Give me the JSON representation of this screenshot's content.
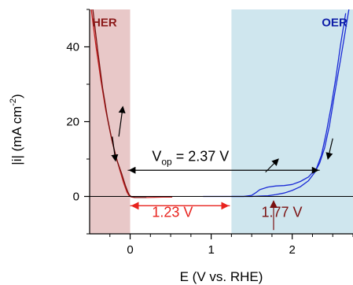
{
  "chart_data": {
    "type": "line",
    "xlabel": "E (V vs. RHE)",
    "ylabel": "|i| (mA cm-2)",
    "xlim": [
      -0.5,
      2.75
    ],
    "ylim": [
      -10,
      50
    ],
    "x_ticks": [
      {
        "value": 0,
        "label": "0"
      },
      {
        "value": 1,
        "label": "1"
      },
      {
        "value": 2,
        "label": "2"
      }
    ],
    "y_ticks": [
      {
        "value": 0,
        "label": "0"
      },
      {
        "value": 20,
        "label": "20"
      },
      {
        "value": 40,
        "label": "40"
      }
    ],
    "regions": [
      {
        "label": "HER",
        "x": [
          -0.5,
          0.0
        ],
        "color": "#e8c8c8",
        "label_color": "#8b1a1a"
      },
      {
        "label": "OER",
        "x": [
          1.25,
          2.75
        ],
        "color": "#cfe6ee",
        "label_color": "#0f1fa8"
      }
    ],
    "series": [
      {
        "color": "#c41e1e",
        "x": [
          -0.48,
          -0.42,
          -0.36,
          -0.3,
          -0.24,
          -0.18,
          -0.12,
          -0.08,
          -0.04,
          -0.02,
          0.0,
          0.02,
          0.06,
          0.2,
          0.4,
          0.52
        ],
        "y": [
          50,
          40,
          31,
          23,
          16.5,
          11,
          6.5,
          3.6,
          1.2,
          0.4,
          0.0,
          -0.2,
          -0.3,
          -0.3,
          -0.2,
          -0.2
        ]
      },
      {
        "color": "#7a1010",
        "x": [
          -0.46,
          -0.4,
          -0.34,
          -0.28,
          -0.22,
          -0.16,
          -0.1,
          -0.06,
          -0.03,
          -0.01,
          0.01,
          0.06,
          0.2
        ],
        "y": [
          50,
          39,
          29,
          21,
          14.5,
          9.5,
          5.8,
          3.0,
          1.3,
          0.4,
          0.0,
          -0.3,
          -0.3
        ]
      },
      {
        "color": "#1a2ad6",
        "x": [
          0.9,
          1.2,
          1.4,
          1.5,
          1.55,
          1.6,
          1.7,
          1.8,
          1.9,
          2.0,
          2.1,
          2.2,
          2.3,
          2.36,
          2.42,
          2.48,
          2.54,
          2.6,
          2.66
        ],
        "y": [
          0.0,
          0.0,
          0.0,
          0.3,
          1.0,
          1.8,
          2.5,
          2.8,
          2.9,
          3.2,
          4.0,
          5.2,
          7.5,
          11.0,
          17.0,
          24.0,
          32.0,
          41.0,
          49.0
        ]
      },
      {
        "color": "#1a2ad6",
        "x": [
          2.7,
          2.6,
          2.52,
          2.46,
          2.4,
          2.34,
          2.28,
          2.2,
          2.1,
          2.0,
          1.9,
          1.8,
          1.7,
          1.6,
          1.5,
          1.4,
          1.3,
          1.25
        ],
        "y": [
          50.0,
          37.0,
          27.0,
          19.0,
          13.0,
          9.0,
          6.5,
          4.2,
          2.6,
          1.6,
          0.9,
          0.5,
          0.2,
          0.1,
          0.0,
          0.0,
          0.0,
          0.0
        ]
      }
    ],
    "annotations": {
      "her_label": "HER",
      "oer_label": "OER",
      "vop_prefix": "V",
      "vop_subscript": "op",
      "vop_suffix": " = 2.37 V",
      "vop_from_x": -0.03,
      "vop_to_x": 2.34,
      "vop_y": 7,
      "label_1_23": "1.23 V",
      "span_from_x": 0.0,
      "span_to_x": 1.23,
      "span_y": -2.5,
      "label_1_77": "1.77 V",
      "onset_x": 1.77,
      "colors": {
        "black": "#000000",
        "red": "#e8231e",
        "darkred": "#7a1010"
      }
    }
  }
}
